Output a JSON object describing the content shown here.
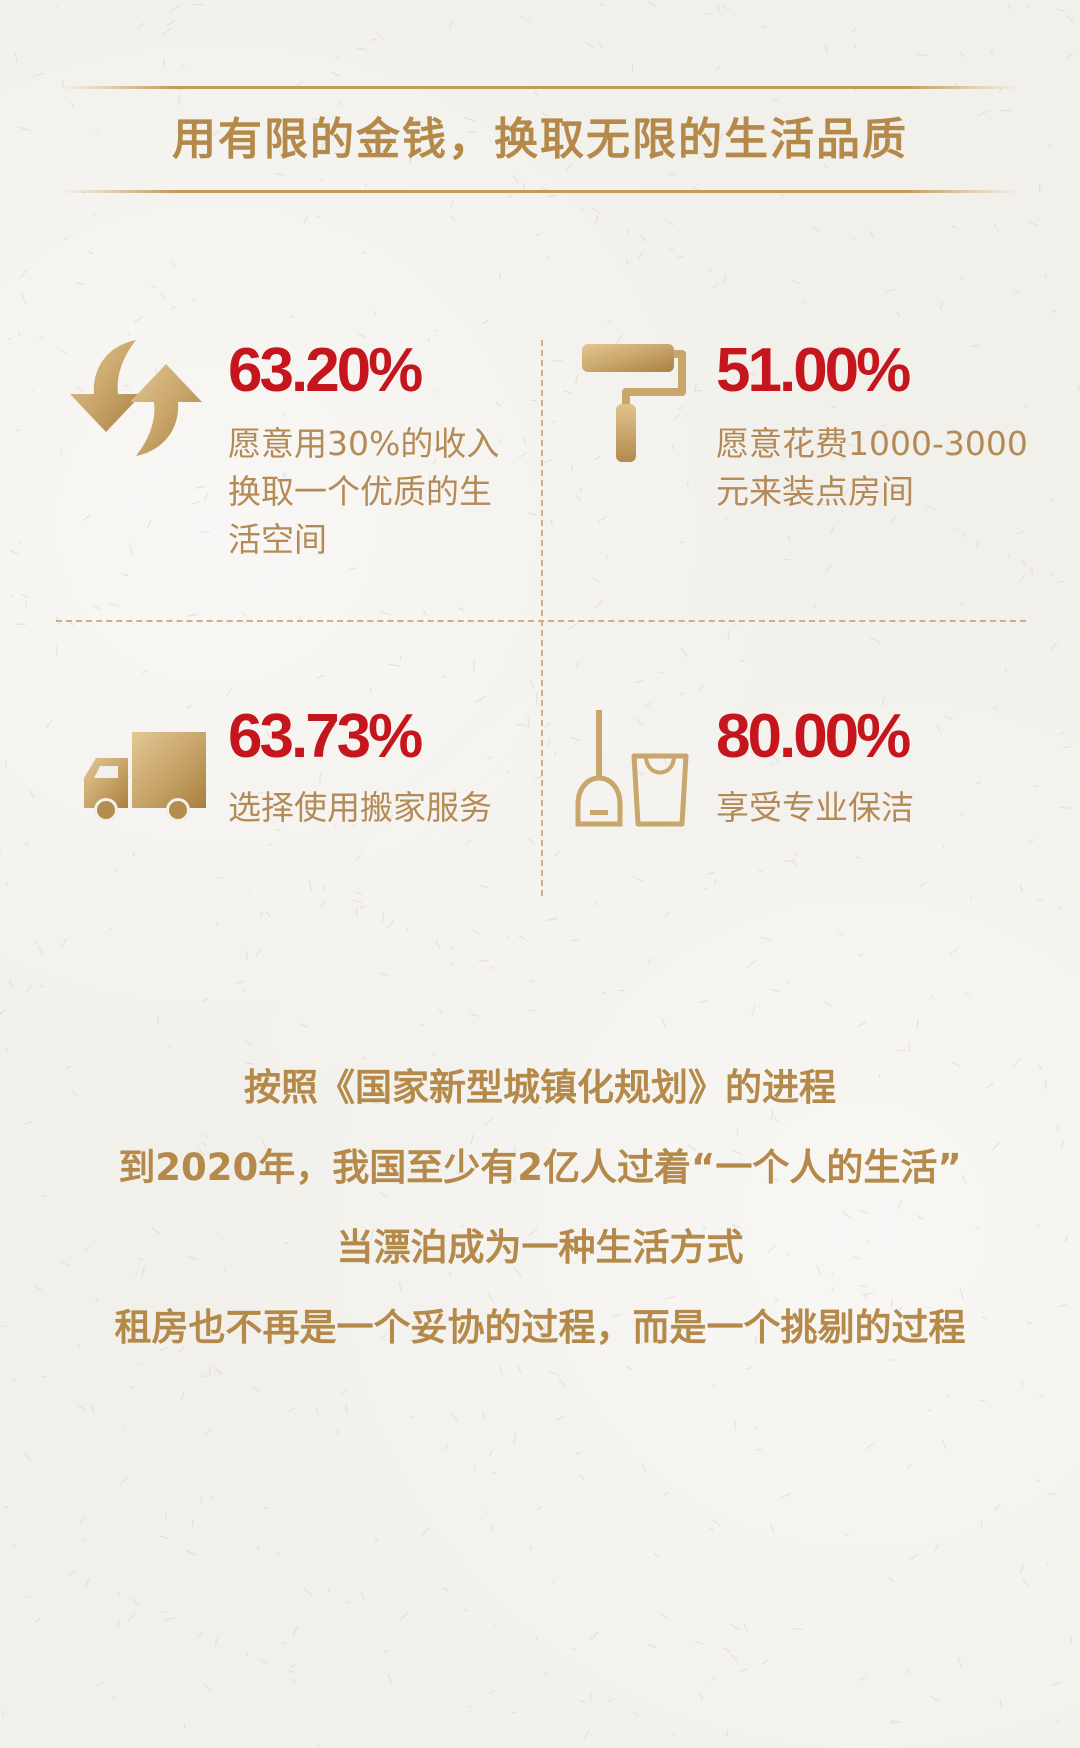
{
  "headline": "用有限的金钱，换取无限的生活品质",
  "stats": [
    {
      "value": "63.20%",
      "label": "愿意用30%的收入换取一个优质的生活空间",
      "icon": "exchange-arrows-icon"
    },
    {
      "value": "51.00%",
      "label": "愿意花费1000-3000元来装点房间",
      "icon": "paint-roller-icon"
    },
    {
      "value": "63.73%",
      "label": "选择使用搬家服务",
      "icon": "moving-truck-icon"
    },
    {
      "value": "80.00%",
      "label": "享受专业保洁",
      "icon": "dustpan-bucket-icon"
    }
  ],
  "paragraph": [
    "按照《国家新型城镇化规划》的进程",
    "到2020年，我国至少有2亿人过着“一个人的生活”",
    "当漂泊成为一种生活方式",
    "租房也不再是一个妥协的过程，而是一个挑剔的过程"
  ],
  "colors": {
    "gold": "#b4894a",
    "stat_red": "#c4161c",
    "label_gold": "#b48a57",
    "background": "#f2f0eb"
  }
}
